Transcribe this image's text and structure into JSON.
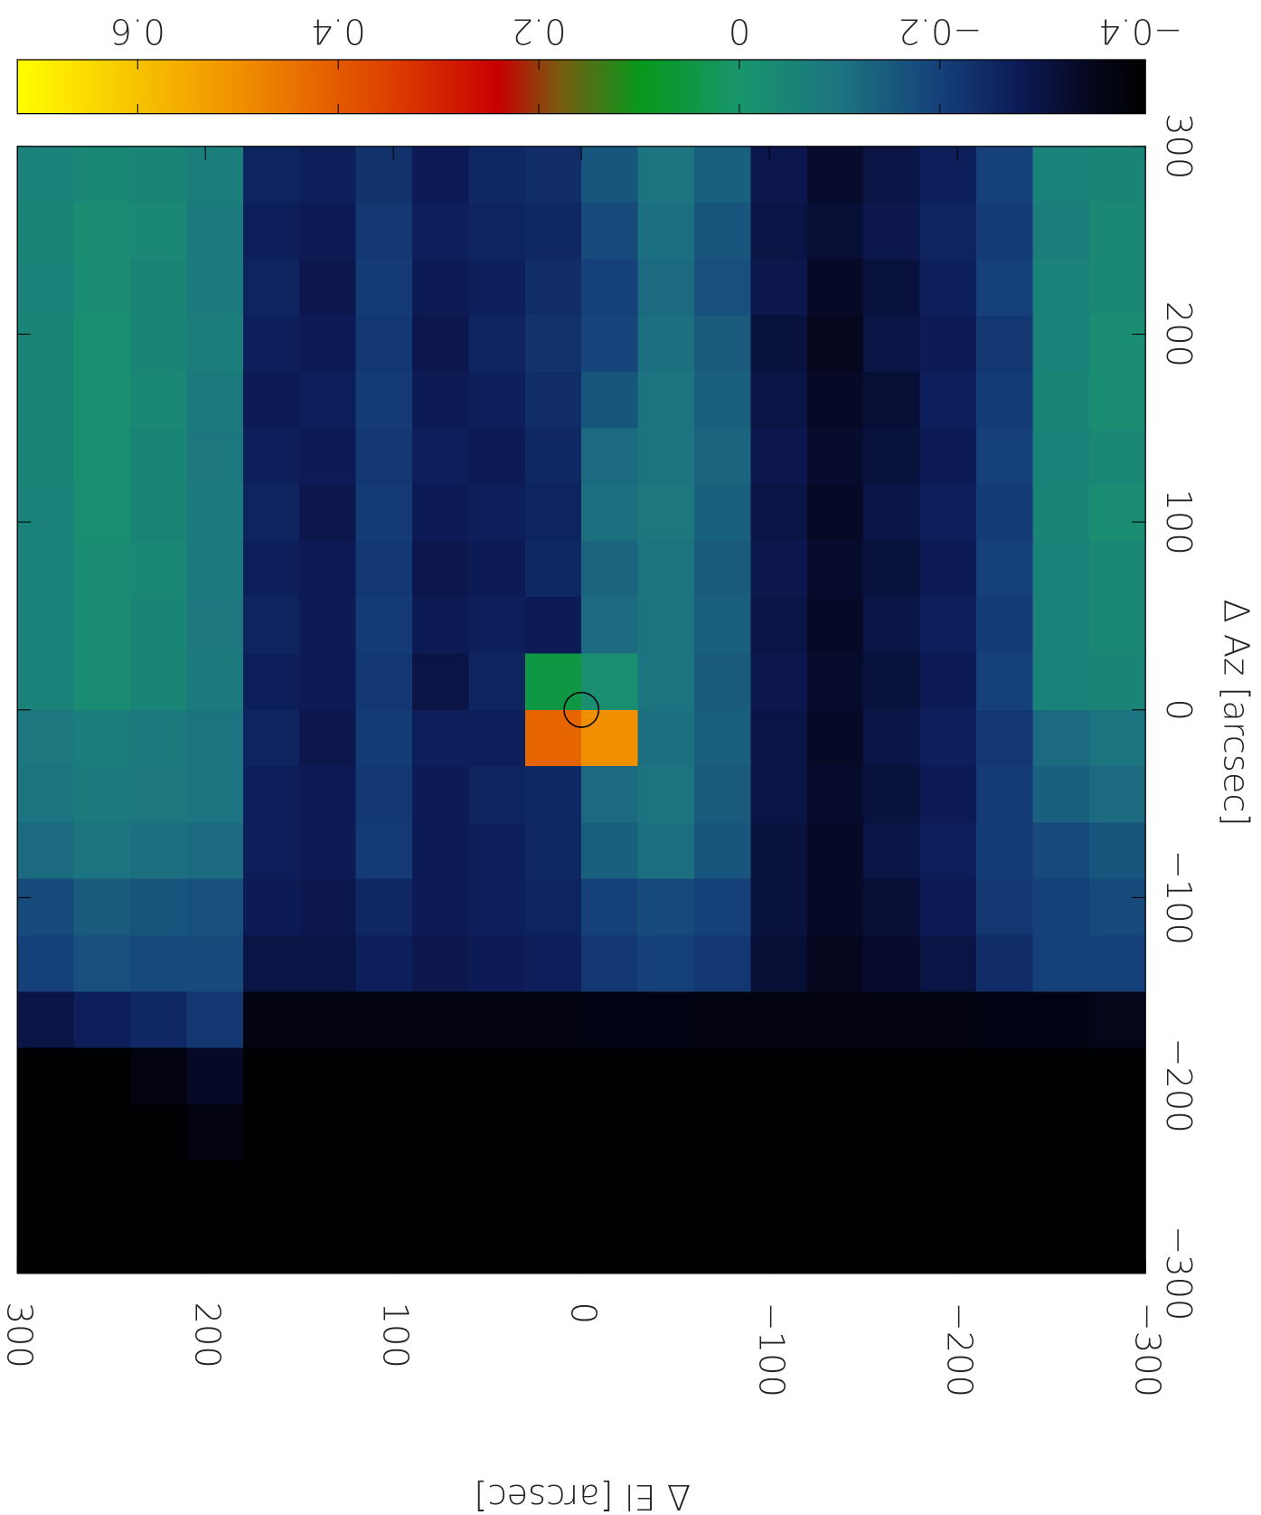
{
  "chart_data": {
    "type": "heatmap",
    "x_label": "Δ El [arcsec]",
    "y_label": "Δ Az [arcsec]",
    "x": [
      285,
      255,
      225,
      195,
      165,
      135,
      105,
      75,
      45,
      15,
      -15,
      -45,
      -75,
      -105,
      -135,
      -165,
      -195,
      -225,
      -255,
      -285
    ],
    "y": [
      285,
      255,
      225,
      195,
      165,
      135,
      105,
      75,
      45,
      15,
      -15,
      -45,
      -75,
      -105,
      -135,
      -165,
      -195,
      -225,
      -255,
      -285
    ],
    "z": [
      [
        -0.06,
        -0.04,
        -0.05,
        -0.07,
        -0.26,
        -0.27,
        -0.23,
        -0.28,
        -0.25,
        -0.24,
        -0.16,
        -0.1,
        -0.14,
        -0.29,
        -0.33,
        -0.3,
        -0.27,
        -0.2,
        -0.06,
        -0.05
      ],
      [
        -0.05,
        -0.03,
        -0.04,
        -0.08,
        -0.27,
        -0.28,
        -0.22,
        -0.27,
        -0.26,
        -0.25,
        -0.18,
        -0.11,
        -0.16,
        -0.3,
        -0.32,
        -0.29,
        -0.26,
        -0.21,
        -0.07,
        -0.04
      ],
      [
        -0.06,
        -0.03,
        -0.05,
        -0.08,
        -0.26,
        -0.29,
        -0.21,
        -0.28,
        -0.27,
        -0.24,
        -0.2,
        -0.12,
        -0.17,
        -0.29,
        -0.34,
        -0.31,
        -0.27,
        -0.2,
        -0.06,
        -0.04
      ],
      [
        -0.05,
        -0.02,
        -0.05,
        -0.07,
        -0.27,
        -0.28,
        -0.22,
        -0.29,
        -0.26,
        -0.23,
        -0.19,
        -0.11,
        -0.15,
        -0.31,
        -0.35,
        -0.3,
        -0.28,
        -0.22,
        -0.06,
        -0.03
      ],
      [
        -0.05,
        -0.02,
        -0.04,
        -0.08,
        -0.28,
        -0.27,
        -0.21,
        -0.28,
        -0.27,
        -0.24,
        -0.16,
        -0.1,
        -0.14,
        -0.3,
        -0.34,
        -0.32,
        -0.27,
        -0.21,
        -0.05,
        -0.03
      ],
      [
        -0.05,
        -0.02,
        -0.05,
        -0.09,
        -0.27,
        -0.28,
        -0.22,
        -0.27,
        -0.28,
        -0.25,
        -0.12,
        -0.1,
        -0.13,
        -0.29,
        -0.33,
        -0.31,
        -0.28,
        -0.2,
        -0.06,
        -0.04
      ],
      [
        -0.06,
        -0.02,
        -0.05,
        -0.08,
        -0.26,
        -0.29,
        -0.21,
        -0.28,
        -0.27,
        -0.26,
        -0.11,
        -0.09,
        -0.14,
        -0.3,
        -0.34,
        -0.3,
        -0.27,
        -0.21,
        -0.05,
        -0.03
      ],
      [
        -0.06,
        -0.03,
        -0.04,
        -0.08,
        -0.27,
        -0.28,
        -0.22,
        -0.29,
        -0.28,
        -0.25,
        -0.13,
        -0.1,
        -0.15,
        -0.29,
        -0.33,
        -0.31,
        -0.28,
        -0.2,
        -0.06,
        -0.04
      ],
      [
        -0.06,
        -0.03,
        -0.05,
        -0.09,
        -0.26,
        -0.28,
        -0.21,
        -0.28,
        -0.27,
        -0.28,
        -0.12,
        -0.1,
        -0.14,
        -0.3,
        -0.34,
        -0.3,
        -0.27,
        -0.21,
        -0.06,
        -0.04
      ],
      [
        -0.06,
        -0.03,
        -0.05,
        -0.08,
        -0.27,
        -0.28,
        -0.22,
        -0.3,
        -0.26,
        0.05,
        -0.02,
        -0.1,
        -0.15,
        -0.29,
        -0.33,
        -0.31,
        -0.28,
        -0.2,
        -0.06,
        -0.05
      ],
      [
        -0.09,
        -0.07,
        -0.08,
        -0.1,
        -0.26,
        -0.29,
        -0.21,
        -0.27,
        -0.27,
        0.42,
        0.5,
        -0.11,
        -0.14,
        -0.3,
        -0.34,
        -0.3,
        -0.27,
        -0.22,
        -0.12,
        -0.1
      ],
      [
        -0.1,
        -0.08,
        -0.09,
        -0.1,
        -0.27,
        -0.28,
        -0.22,
        -0.28,
        -0.26,
        -0.25,
        -0.12,
        -0.1,
        -0.15,
        -0.3,
        -0.33,
        -0.31,
        -0.28,
        -0.21,
        -0.14,
        -0.12
      ],
      [
        -0.12,
        -0.1,
        -0.11,
        -0.12,
        -0.27,
        -0.28,
        -0.21,
        -0.28,
        -0.27,
        -0.25,
        -0.14,
        -0.11,
        -0.16,
        -0.31,
        -0.34,
        -0.3,
        -0.27,
        -0.21,
        -0.18,
        -0.16
      ],
      [
        -0.18,
        -0.15,
        -0.16,
        -0.17,
        -0.28,
        -0.29,
        -0.25,
        -0.28,
        -0.27,
        -0.26,
        -0.2,
        -0.18,
        -0.2,
        -0.31,
        -0.34,
        -0.32,
        -0.28,
        -0.22,
        -0.2,
        -0.18
      ],
      [
        -0.2,
        -0.17,
        -0.18,
        -0.18,
        -0.3,
        -0.3,
        -0.27,
        -0.29,
        -0.28,
        -0.27,
        -0.22,
        -0.2,
        -0.22,
        -0.32,
        -0.35,
        -0.33,
        -0.3,
        -0.24,
        -0.2,
        -0.2
      ],
      [
        -0.3,
        -0.27,
        -0.25,
        -0.22,
        -0.38,
        -0.38,
        -0.38,
        -0.38,
        -0.38,
        -0.38,
        -0.37,
        -0.37,
        -0.38,
        -0.38,
        -0.38,
        -0.38,
        -0.38,
        -0.37,
        -0.37,
        -0.36
      ],
      [
        -0.4,
        -0.4,
        -0.38,
        -0.34,
        -0.4,
        -0.4,
        -0.4,
        -0.4,
        -0.4,
        -0.4,
        -0.4,
        -0.4,
        -0.4,
        -0.4,
        -0.4,
        -0.4,
        -0.4,
        -0.4,
        -0.4,
        -0.4
      ],
      [
        -0.4,
        -0.4,
        -0.4,
        -0.38,
        -0.4,
        -0.4,
        -0.4,
        -0.4,
        -0.4,
        -0.4,
        -0.4,
        -0.4,
        -0.4,
        -0.4,
        -0.4,
        -0.4,
        -0.4,
        -0.4,
        -0.4,
        -0.4
      ],
      [
        -0.4,
        -0.4,
        -0.4,
        -0.4,
        -0.4,
        -0.4,
        -0.4,
        -0.4,
        -0.4,
        -0.4,
        -0.4,
        -0.4,
        -0.4,
        -0.4,
        -0.4,
        -0.4,
        -0.4,
        -0.4,
        -0.4,
        -0.4
      ],
      [
        -0.4,
        -0.4,
        -0.4,
        -0.4,
        -0.4,
        -0.4,
        -0.4,
        -0.4,
        -0.4,
        -0.4,
        -0.4,
        -0.4,
        -0.4,
        -0.4,
        -0.4,
        -0.4,
        -0.4,
        -0.4,
        -0.4,
        -0.4
      ]
    ],
    "xlim": [
      300,
      -300
    ],
    "xticks": [
      300,
      200,
      100,
      0,
      {
        "value": -100,
        "label": "−100"
      },
      {
        "value": -200,
        "label": "−200"
      },
      {
        "value": -300,
        "label": "−300"
      }
    ],
    "ylim": [
      -300,
      300
    ],
    "yticks": [
      {
        "value": -300,
        "label": "−300"
      },
      {
        "value": -200,
        "label": "−200"
      },
      {
        "value": -100,
        "label": "−100"
      },
      0,
      100,
      200,
      300
    ],
    "clim": [
      -0.405,
      0.72
    ],
    "cticks": [
      0.6,
      0.4,
      0.2,
      0,
      {
        "value": -0.2,
        "label": "−0.2"
      },
      {
        "value": -0.4,
        "label": "−0.4"
      }
    ],
    "colorscale": [
      [
        -0.405,
        "#000000"
      ],
      [
        -0.35,
        "#05071e"
      ],
      [
        -0.28,
        "#0c1a55"
      ],
      [
        -0.2,
        "#15407a"
      ],
      [
        -0.1,
        "#1c7480"
      ],
      [
        0,
        "#18966c"
      ],
      [
        0.1,
        "#08981a"
      ],
      [
        0.18,
        "#7a5a10"
      ],
      [
        0.24,
        "#c80000"
      ],
      [
        0.35,
        "#dd4000"
      ],
      [
        0.5,
        "#f09000"
      ],
      [
        0.72,
        "#ffff00"
      ]
    ]
  }
}
